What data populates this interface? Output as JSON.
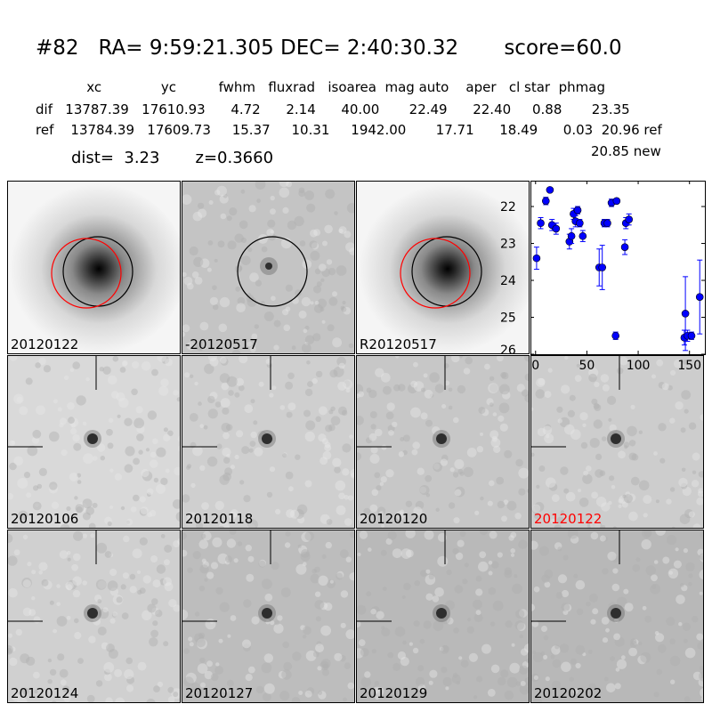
{
  "header": {
    "title": "#82   RA= 9:59:21.305 DEC= 2:40:30.32       score=60.0",
    "columns_line": "            xc              yc          fwhm   fluxrad   isoarea  mag auto    aper   cl star  phmag",
    "dif_line": "dif   13787.39   17610.93      4.72      2.14      40.00       22.49      22.40     0.88       23.35",
    "ref_line": "ref    13784.39   17609.73     15.37     10.31     1942.00       17.71      18.49      0.03  20.96 ref",
    "phmag_new": "20.85 new",
    "dist_z": "dist=  3.23       z=0.3660"
  },
  "panels": [
    {
      "label": "20120122",
      "label_color": "#000000",
      "kind": "galaxy",
      "circles": [
        "black",
        "red"
      ]
    },
    {
      "label": "-20120517",
      "label_color": "#000000",
      "kind": "diff",
      "circles": [
        "black"
      ]
    },
    {
      "label": "R20120517",
      "label_color": "#000000",
      "kind": "galaxy",
      "circles": [
        "black",
        "red"
      ]
    },
    {
      "label": "20120106",
      "label_color": "#000000",
      "kind": "epoch"
    },
    {
      "label": "20120118",
      "label_color": "#000000",
      "kind": "epoch"
    },
    {
      "label": "20120120",
      "label_color": "#000000",
      "kind": "epoch"
    },
    {
      "label": "20120122",
      "label_color": "#ff0000",
      "kind": "epoch"
    },
    {
      "label": "20120124",
      "label_color": "#000000",
      "kind": "epoch"
    },
    {
      "label": "20120127",
      "label_color": "#000000",
      "kind": "epoch"
    },
    {
      "label": "20120129",
      "label_color": "#000000",
      "kind": "epoch"
    },
    {
      "label": "20120202",
      "label_color": "#000000",
      "kind": "epoch"
    }
  ],
  "chart_data": {
    "type": "scatter",
    "title": "",
    "xlabel": "",
    "ylabel": "",
    "xlim": [
      -5,
      165
    ],
    "ylim": [
      26,
      21.3
    ],
    "y_inverted": true,
    "xticks": [
      0,
      50,
      100,
      150
    ],
    "yticks": [
      22,
      23,
      24,
      25,
      26
    ],
    "grid": false,
    "marker_color": "#0000ff",
    "points": [
      {
        "x": 1,
        "y": 23.4,
        "err": 0.3
      },
      {
        "x": 5,
        "y": 22.45,
        "err": 0.15
      },
      {
        "x": 10,
        "y": 21.85,
        "err": 0.1
      },
      {
        "x": 14,
        "y": 21.55,
        "err": 0.05
      },
      {
        "x": 16,
        "y": 22.5,
        "err": 0.15
      },
      {
        "x": 20,
        "y": 22.6,
        "err": 0.15
      },
      {
        "x": 33,
        "y": 22.95,
        "err": 0.2
      },
      {
        "x": 35,
        "y": 22.8,
        "err": 0.2
      },
      {
        "x": 37,
        "y": 22.2,
        "err": 0.15
      },
      {
        "x": 39,
        "y": 22.4,
        "err": 0.15
      },
      {
        "x": 41,
        "y": 22.1,
        "err": 0.1
      },
      {
        "x": 43,
        "y": 22.45,
        "err": 0.1
      },
      {
        "x": 46,
        "y": 22.8,
        "err": 0.15
      },
      {
        "x": 62,
        "y": 23.65,
        "err": 0.5
      },
      {
        "x": 65,
        "y": 23.65,
        "err": 0.6
      },
      {
        "x": 67,
        "y": 22.45,
        "err": 0.1
      },
      {
        "x": 70,
        "y": 22.45,
        "err": 0.1
      },
      {
        "x": 74,
        "y": 21.9,
        "err": 0.1
      },
      {
        "x": 79,
        "y": 21.85,
        "err": 0.05
      },
      {
        "x": 78,
        "y": 25.5,
        "err": 0.1
      },
      {
        "x": 87,
        "y": 23.1,
        "err": 0.2
      },
      {
        "x": 88,
        "y": 22.45,
        "err": 0.15
      },
      {
        "x": 91,
        "y": 22.35,
        "err": 0.15
      },
      {
        "x": 145,
        "y": 25.55,
        "err": 0.2
      },
      {
        "x": 146,
        "y": 24.9,
        "err": 1.0
      },
      {
        "x": 148,
        "y": 25.5,
        "err": 0.15
      },
      {
        "x": 152,
        "y": 25.5,
        "err": 0.1
      },
      {
        "x": 160,
        "y": 24.45,
        "err": 1.0
      }
    ]
  }
}
